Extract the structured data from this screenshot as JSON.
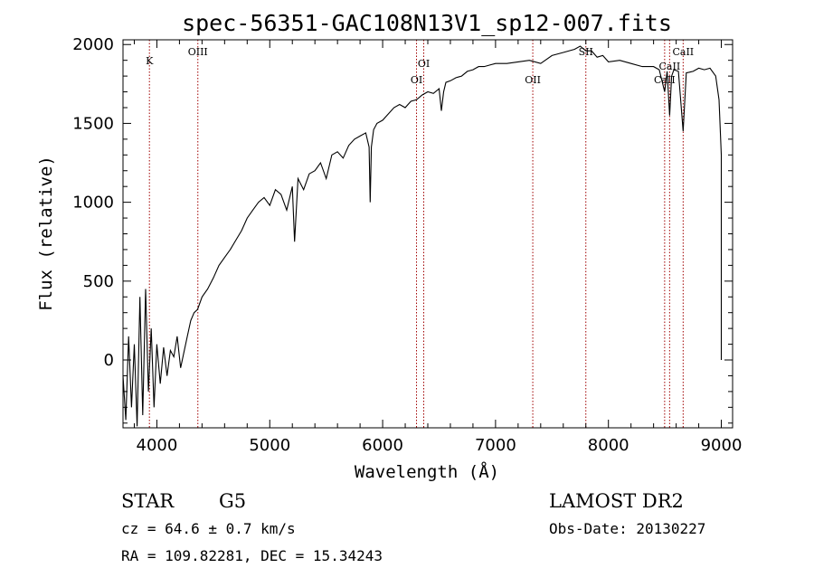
{
  "chart_data": {
    "type": "line",
    "title": "spec-56351-GAC108N13V1_sp12-007.fits",
    "xlabel": "Wavelength (Å)",
    "ylabel": "Flux (relative)",
    "xlim": [
      3700,
      9100
    ],
    "ylim": [
      -430,
      2030
    ],
    "xticks": [
      4000,
      5000,
      6000,
      7000,
      8000,
      9000
    ],
    "yticks": [
      0,
      500,
      1000,
      1500,
      2000
    ],
    "grid": false,
    "legend": "none",
    "series": [
      {
        "points": [
          [
            3700,
            -100
          ],
          [
            3725,
            -380
          ],
          [
            3750,
            150
          ],
          [
            3775,
            -300
          ],
          [
            3800,
            100
          ],
          [
            3825,
            -420
          ],
          [
            3850,
            400
          ],
          [
            3875,
            -350
          ],
          [
            3900,
            450
          ],
          [
            3925,
            -200
          ],
          [
            3950,
            200
          ],
          [
            3975,
            -300
          ],
          [
            4000,
            100
          ],
          [
            4030,
            -150
          ],
          [
            4060,
            80
          ],
          [
            4090,
            -100
          ],
          [
            4120,
            60
          ],
          [
            4150,
            20
          ],
          [
            4180,
            150
          ],
          [
            4210,
            -50
          ],
          [
            4240,
            50
          ],
          [
            4270,
            150
          ],
          [
            4300,
            250
          ],
          [
            4330,
            300
          ],
          [
            4360,
            320
          ],
          [
            4400,
            400
          ],
          [
            4450,
            450
          ],
          [
            4500,
            520
          ],
          [
            4550,
            600
          ],
          [
            4600,
            650
          ],
          [
            4650,
            700
          ],
          [
            4700,
            760
          ],
          [
            4750,
            820
          ],
          [
            4800,
            900
          ],
          [
            4850,
            950
          ],
          [
            4900,
            1000
          ],
          [
            4950,
            1030
          ],
          [
            5000,
            980
          ],
          [
            5050,
            1080
          ],
          [
            5100,
            1050
          ],
          [
            5150,
            950
          ],
          [
            5200,
            1100
          ],
          [
            5220,
            750
          ],
          [
            5250,
            1150
          ],
          [
            5300,
            1080
          ],
          [
            5350,
            1180
          ],
          [
            5400,
            1200
          ],
          [
            5450,
            1250
          ],
          [
            5500,
            1150
          ],
          [
            5550,
            1300
          ],
          [
            5600,
            1320
          ],
          [
            5650,
            1280
          ],
          [
            5700,
            1360
          ],
          [
            5750,
            1400
          ],
          [
            5800,
            1420
          ],
          [
            5850,
            1440
          ],
          [
            5880,
            1350
          ],
          [
            5890,
            1000
          ],
          [
            5900,
            1350
          ],
          [
            5920,
            1460
          ],
          [
            5950,
            1500
          ],
          [
            6000,
            1520
          ],
          [
            6050,
            1560
          ],
          [
            6100,
            1600
          ],
          [
            6150,
            1620
          ],
          [
            6200,
            1600
          ],
          [
            6250,
            1640
          ],
          [
            6300,
            1650
          ],
          [
            6350,
            1680
          ],
          [
            6400,
            1700
          ],
          [
            6450,
            1690
          ],
          [
            6500,
            1720
          ],
          [
            6520,
            1580
          ],
          [
            6540,
            1700
          ],
          [
            6560,
            1760
          ],
          [
            6600,
            1770
          ],
          [
            6650,
            1790
          ],
          [
            6700,
            1800
          ],
          [
            6750,
            1830
          ],
          [
            6800,
            1840
          ],
          [
            6850,
            1860
          ],
          [
            6900,
            1860
          ],
          [
            6950,
            1870
          ],
          [
            7000,
            1880
          ],
          [
            7100,
            1880
          ],
          [
            7200,
            1890
          ],
          [
            7300,
            1900
          ],
          [
            7400,
            1880
          ],
          [
            7500,
            1930
          ],
          [
            7600,
            1950
          ],
          [
            7700,
            1970
          ],
          [
            7750,
            1990
          ],
          [
            7800,
            1960
          ],
          [
            7850,
            1960
          ],
          [
            7900,
            1920
          ],
          [
            7950,
            1930
          ],
          [
            8000,
            1890
          ],
          [
            8100,
            1900
          ],
          [
            8200,
            1880
          ],
          [
            8300,
            1860
          ],
          [
            8400,
            1860
          ],
          [
            8450,
            1840
          ],
          [
            8498,
            1700
          ],
          [
            8520,
            1830
          ],
          [
            8542,
            1550
          ],
          [
            8560,
            1800
          ],
          [
            8580,
            1840
          ],
          [
            8620,
            1830
          ],
          [
            8662,
            1450
          ],
          [
            8690,
            1820
          ],
          [
            8750,
            1830
          ],
          [
            8800,
            1850
          ],
          [
            8850,
            1840
          ],
          [
            8900,
            1850
          ],
          [
            8950,
            1800
          ],
          [
            8980,
            1650
          ],
          [
            9000,
            1300
          ],
          [
            9000,
            0
          ]
        ]
      }
    ],
    "line_markers": [
      {
        "label": "K",
        "x": 3934
      },
      {
        "label": "OIII",
        "x": 4363
      },
      {
        "label": "OI",
        "x": 6300
      },
      {
        "label": "OI",
        "x": 6364
      },
      {
        "label": "OII",
        "x": 7330
      },
      {
        "label": "SII",
        "x": 7800
      },
      {
        "label": "CaII",
        "x": 8498
      },
      {
        "label": "CaII",
        "x": 8542
      },
      {
        "label": "CaII",
        "x": 8662
      }
    ]
  },
  "info": {
    "object_class": "STAR",
    "subclass": "G5",
    "survey": "LAMOST DR2",
    "redshift": "cz = 64.6 ± 0.7 km/s",
    "obs_date": "Obs-Date: 20130227",
    "coords": "RA = 109.82281, DEC =  15.34243"
  },
  "colors": {
    "spectrum": "#000000",
    "marker_line": "#a00000"
  }
}
